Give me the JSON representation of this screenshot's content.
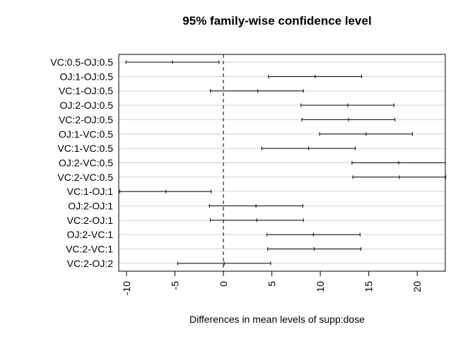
{
  "chart_data": {
    "type": "interval",
    "title": "95% family-wise confidence level",
    "xlabel": "Differences in mean levels of supp:dose",
    "ylabel": "",
    "xlim": [
      -10.8,
      22.9
    ],
    "xticks": [
      -10,
      -5,
      0,
      5,
      10,
      15,
      20
    ],
    "grid": "horizontal",
    "reference_line": 0,
    "comparisons": [
      {
        "label": "VC:0.5-OJ:0.5",
        "lwr": -10.05,
        "diff": -5.25,
        "upr": -0.45
      },
      {
        "label": "OJ:1-OJ:0.5",
        "lwr": 4.65,
        "diff": 9.47,
        "upr": 14.25
      },
      {
        "label": "VC:1-OJ:0.5",
        "lwr": -1.35,
        "diff": 3.54,
        "upr": 8.25
      },
      {
        "label": "OJ:2-OJ:0.5",
        "lwr": 8.0,
        "diff": 12.83,
        "upr": 17.6
      },
      {
        "label": "VC:2-OJ:0.5",
        "lwr": 8.1,
        "diff": 12.91,
        "upr": 17.7
      },
      {
        "label": "OJ:1-VC:0.5",
        "lwr": 9.92,
        "diff": 14.72,
        "upr": 19.5
      },
      {
        "label": "VC:1-VC:0.5",
        "lwr": 3.95,
        "diff": 8.79,
        "upr": 13.6
      },
      {
        "label": "OJ:2-VC:0.5",
        "lwr": 13.27,
        "diff": 18.08,
        "upr": 22.9
      },
      {
        "label": "VC:2-VC:0.5",
        "lwr": 13.36,
        "diff": 18.16,
        "upr": 22.95
      },
      {
        "label": "VC:1-OJ:1",
        "lwr": -10.7,
        "diff": -5.93,
        "upr": -1.25
      },
      {
        "label": "OJ:2-OJ:1",
        "lwr": -1.45,
        "diff": 3.36,
        "upr": 8.2
      },
      {
        "label": "VC:2-OJ:1",
        "lwr": -1.35,
        "diff": 3.44,
        "upr": 8.25
      },
      {
        "label": "OJ:2-VC:1",
        "lwr": 4.5,
        "diff": 9.29,
        "upr": 14.1
      },
      {
        "label": "VC:2-VC:1",
        "lwr": 4.57,
        "diff": 9.37,
        "upr": 14.2
      },
      {
        "label": "VC:2-OJ:2",
        "lwr": -4.72,
        "diff": 0.08,
        "upr": 4.88
      }
    ]
  }
}
